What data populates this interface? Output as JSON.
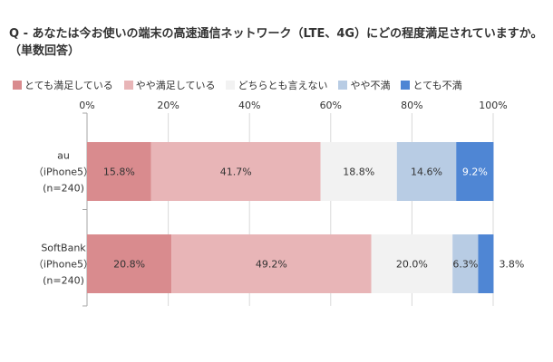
{
  "chart_data": {
    "type": "bar",
    "orientation": "horizontal-stacked-100",
    "title": "Q - あなたは今お使いの端末の高速通信ネットワーク（LTE、4G）にどの程度満足されていますか。（単数回答）",
    "xlim": [
      0,
      100
    ],
    "x_ticks": [
      "0%",
      "20%",
      "40%",
      "60%",
      "80%",
      "100%"
    ],
    "legend_position": "top",
    "grid": true,
    "categories": [
      [
        "au",
        "（iPhone5）",
        "(n=240)"
      ],
      [
        "SoftBank",
        "（iPhone5）",
        "(n=240)"
      ]
    ],
    "series": [
      {
        "name": "とても満足している",
        "color": "#d98b8e",
        "values": [
          15.8,
          20.8
        ],
        "labels": [
          "15.8%",
          "20.8%"
        ]
      },
      {
        "name": "やや満足している",
        "color": "#e8b5b7",
        "values": [
          41.7,
          49.2
        ],
        "labels": [
          "41.7%",
          "49.2%"
        ]
      },
      {
        "name": "どちらとも言えない",
        "color": "#f2f2f2",
        "values": [
          18.8,
          20.0
        ],
        "labels": [
          "18.8%",
          "20.0%"
        ]
      },
      {
        "name": "やや不満",
        "color": "#b8cce4",
        "values": [
          14.6,
          6.3
        ],
        "labels": [
          "14.6%",
          "6.3%"
        ]
      },
      {
        "name": "とても不満",
        "color": "#4f86d4",
        "values": [
          9.2,
          3.8
        ],
        "labels": [
          "9.2%",
          "3.8%"
        ]
      }
    ]
  }
}
